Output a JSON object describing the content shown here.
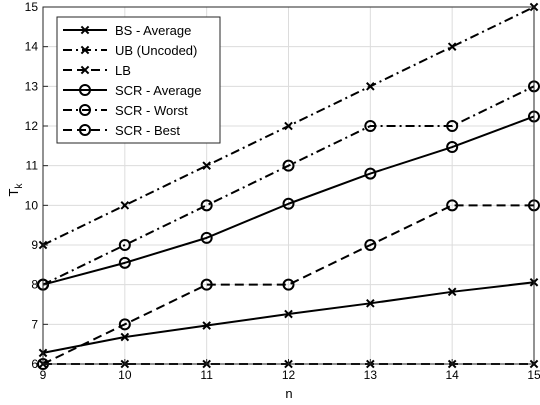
{
  "chart_data": {
    "type": "line",
    "xlabel": "n",
    "ylabel": "T",
    "ylabel_sub": "k",
    "xlim": [
      9,
      15
    ],
    "ylim": [
      6,
      15
    ],
    "xticks": [
      9,
      10,
      11,
      12,
      13,
      14,
      15
    ],
    "yticks": [
      6,
      7,
      8,
      9,
      10,
      11,
      12,
      13,
      14,
      15
    ],
    "grid": true,
    "legend_position": "top-left",
    "x": [
      9,
      10,
      11,
      12,
      13,
      14,
      15
    ],
    "series": [
      {
        "name": "BS - Average",
        "marker": "x",
        "line": "solid",
        "values": [
          6.28,
          6.68,
          6.97,
          7.26,
          7.53,
          7.82,
          8.06
        ]
      },
      {
        "name": "UB (Uncoded)",
        "marker": "x",
        "line": "dashdot",
        "values": [
          9,
          10,
          11,
          12,
          13,
          14,
          15
        ]
      },
      {
        "name": "LB",
        "marker": "x",
        "line": "dashed",
        "values": [
          6,
          6,
          6,
          6,
          6,
          6,
          6
        ]
      },
      {
        "name": "SCR - Average",
        "marker": "o",
        "line": "solid",
        "values": [
          8,
          8.55,
          9.18,
          10.04,
          10.8,
          11.47,
          12.24
        ]
      },
      {
        "name": "SCR - Worst",
        "marker": "o",
        "line": "dashdot",
        "values": [
          8,
          9,
          10,
          11,
          12,
          12,
          13
        ]
      },
      {
        "name": "SCR - Best",
        "marker": "o",
        "line": "dashed",
        "values": [
          6,
          7,
          8,
          8,
          9,
          10,
          10
        ]
      }
    ]
  }
}
